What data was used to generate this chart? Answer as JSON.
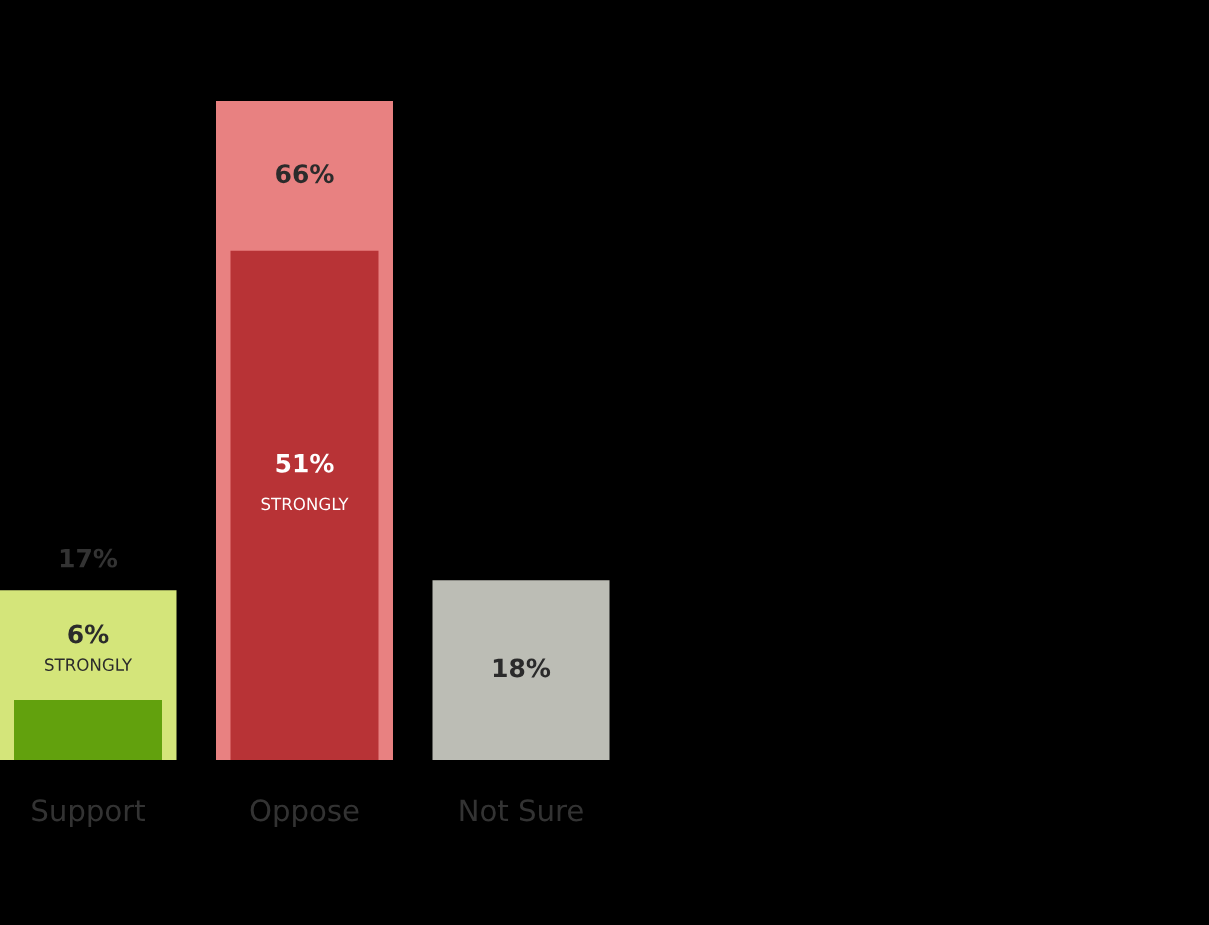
{
  "chart_data": {
    "type": "bar",
    "categories": [
      "Support",
      "Oppose",
      "Not Sure"
    ],
    "series": [
      {
        "colors": [
          "#d4e57a",
          "#e88181",
          "#bcbdb5"
        ],
        "values": [
          17,
          66,
          18
        ],
        "value_labels": [
          "17%",
          "66%",
          "18%"
        ]
      },
      {
        "name": "STRONGLY",
        "colors": [
          "#62a10d",
          "#b83336",
          null
        ],
        "values": [
          6,
          51,
          null
        ],
        "value_labels": [
          "6%",
          "51%",
          null
        ]
      }
    ]
  }
}
